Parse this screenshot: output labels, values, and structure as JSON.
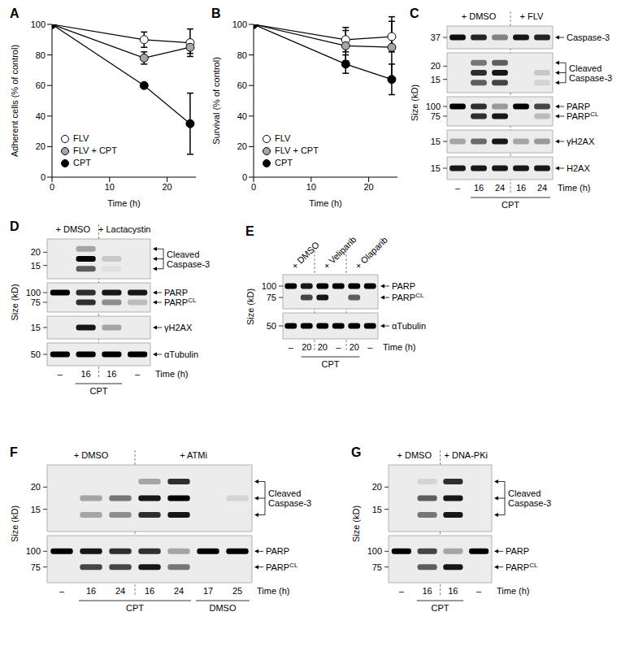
{
  "chart_data": [
    {
      "type": "line",
      "panel": "A",
      "xlabel": "Time (h)",
      "ylabel": "Adherent cells (% of control)",
      "x": [
        0,
        16,
        24
      ],
      "xlim": [
        0,
        25
      ],
      "xticks": [
        0,
        10,
        20
      ],
      "ylim": [
        0,
        100
      ],
      "yticks": [
        0,
        20,
        40,
        60,
        80,
        100
      ],
      "legend": "lower left",
      "series": [
        {
          "name": "FLV",
          "color": "#ffffff",
          "marker": "circle",
          "values": [
            100,
            90,
            88
          ],
          "errors": [
            0,
            5,
            9
          ]
        },
        {
          "name": "FLV + CPT",
          "color": "#a6a6a6",
          "marker": "circle",
          "values": [
            100,
            78,
            85
          ],
          "errors": [
            0,
            4,
            4
          ]
        },
        {
          "name": "CPT",
          "color": "#000000",
          "marker": "circle",
          "values": [
            100,
            60,
            35
          ],
          "errors": [
            0,
            1,
            20
          ]
        }
      ]
    },
    {
      "type": "line",
      "panel": "B",
      "xlabel": "Time (h)",
      "ylabel": "Survival (% of control)",
      "x": [
        0,
        16,
        24
      ],
      "xlim": [
        0,
        25
      ],
      "xticks": [
        0,
        10,
        20
      ],
      "ylim": [
        0,
        100
      ],
      "yticks": [
        0,
        20,
        40,
        60,
        80,
        100
      ],
      "legend": "lower left",
      "series": [
        {
          "name": "FLV",
          "color": "#ffffff",
          "marker": "circle",
          "values": [
            100,
            90,
            92
          ],
          "errors": [
            0,
            8,
            10
          ]
        },
        {
          "name": "FLV + CPT",
          "color": "#a6a6a6",
          "marker": "circle",
          "values": [
            100,
            86,
            85
          ],
          "errors": [
            0,
            10,
            20
          ]
        },
        {
          "name": "CPT",
          "color": "#000000",
          "marker": "circle",
          "values": [
            100,
            74,
            64
          ],
          "errors": [
            0,
            6,
            10
          ]
        }
      ]
    }
  ],
  "blots": [
    {
      "panel": "C",
      "size_label": "Size (kD)",
      "time_label": "Time (h)",
      "headers": [
        {
          "text": "+ DMSO",
          "lanes": [
            0,
            2
          ]
        },
        {
          "text": "+ FLV",
          "lanes": [
            3,
            4
          ]
        }
      ],
      "times": [
        "–",
        "16",
        "24",
        "16",
        "24"
      ],
      "spans": [
        {
          "text": "CPT",
          "lanes": [
            1,
            4
          ]
        }
      ],
      "strips": [
        {
          "markers": [
            37
          ],
          "rows": [
            {
              "label": "Caspase-3",
              "bands": [
                0.95,
                0.85,
                0.45,
                0.9,
                0.85
              ]
            }
          ]
        },
        {
          "markers": [
            20,
            15
          ],
          "group_label": [
            "Cleaved",
            "Caspase-3"
          ],
          "rows": [
            {
              "bands": [
                0,
                0.5,
                0.6,
                0,
                0
              ]
            },
            {
              "bands": [
                0,
                0.8,
                0.9,
                0,
                0.15
              ]
            },
            {
              "bands": [
                0,
                0.6,
                0.7,
                0,
                0.1
              ]
            }
          ]
        },
        {
          "markers": [
            100,
            75
          ],
          "rows": [
            {
              "label": "PARP",
              "bands": [
                1,
                0.8,
                0.35,
                1,
                0.7
              ]
            },
            {
              "label": "PARP",
              "label_sup": "CL",
              "bands": [
                0,
                0.8,
                0.9,
                0,
                0.2
              ]
            }
          ]
        },
        {
          "markers": [
            15
          ],
          "rows": [
            {
              "label": "γH2AX",
              "bands": [
                0.3,
                0.55,
                0.9,
                0.3,
                0.35
              ]
            }
          ]
        },
        {
          "markers": [
            15
          ],
          "rows": [
            {
              "label": "H2AX",
              "bands": [
                0.9,
                0.9,
                0.9,
                0.9,
                0.9
              ]
            }
          ]
        }
      ]
    },
    {
      "panel": "D",
      "size_label": "Size (kD)",
      "time_label": "Time (h)",
      "headers": [
        {
          "text": "+ DMSO",
          "lanes": [
            0,
            1
          ]
        },
        {
          "text": "+ Lactacystin",
          "lanes": [
            2,
            3
          ]
        }
      ],
      "times": [
        "–",
        "16",
        "16",
        "–"
      ],
      "spans": [
        {
          "text": "CPT",
          "lanes": [
            1,
            2
          ]
        }
      ],
      "strips": [
        {
          "markers": [
            20,
            15
          ],
          "group_label": [
            "Cleaved",
            "Caspase-3"
          ],
          "rows": [
            {
              "bands": [
                0,
                0.3,
                0,
                0
              ]
            },
            {
              "bands": [
                0,
                1,
                0.15,
                0
              ]
            },
            {
              "bands": [
                0,
                0.6,
                0.05,
                0
              ]
            }
          ]
        },
        {
          "markers": [
            100,
            75
          ],
          "rows": [
            {
              "label": "PARP",
              "bands": [
                1,
                0.8,
                0.9,
                0.9
              ]
            },
            {
              "label": "PARP",
              "label_sup": "CL",
              "bands": [
                0,
                0.8,
                0.4,
                0.2
              ]
            }
          ]
        },
        {
          "markers": [
            15
          ],
          "rows": [
            {
              "label": "γH2AX",
              "bands": [
                0,
                0.9,
                0.3,
                0
              ]
            }
          ]
        },
        {
          "markers": [
            50
          ],
          "rows": [
            {
              "label": "αTubulin",
              "bands": [
                1,
                1,
                1,
                1
              ]
            }
          ]
        }
      ]
    },
    {
      "panel": "E",
      "size_label": "Size (kD)",
      "time_label": "Time (h)",
      "headers": [
        {
          "text": "+ DMSO",
          "lanes": [
            0,
            1
          ]
        },
        {
          "text": "+ Veliparib",
          "lanes": [
            2,
            3
          ]
        },
        {
          "text": "+ Olaparib",
          "lanes": [
            4,
            5
          ]
        }
      ],
      "times": [
        "–",
        "20",
        "20",
        "–",
        "20",
        "–"
      ],
      "spans": [
        {
          "text": "CPT",
          "lanes": [
            1,
            4
          ]
        }
      ],
      "strips": [
        {
          "markers": [
            100,
            75
          ],
          "rows": [
            {
              "label": "PARP",
              "bands": [
                1,
                0.9,
                1,
                1,
                1,
                1
              ]
            },
            {
              "label": "PARP",
              "label_sup": "CL",
              "bands": [
                0,
                0.7,
                0.9,
                0,
                0.6,
                0
              ]
            }
          ]
        },
        {
          "markers": [
            50
          ],
          "rows": [
            {
              "label": "αTubulin",
              "bands": [
                1,
                1,
                1,
                1,
                1,
                1
              ]
            }
          ]
        }
      ]
    },
    {
      "panel": "F",
      "size_label": "Size (kD)",
      "time_label": "Time (h)",
      "headers": [
        {
          "text": "+ DMSO",
          "lanes": [
            0,
            2
          ]
        },
        {
          "text": "+ ATMi",
          "lanes": [
            3,
            6
          ]
        }
      ],
      "times": [
        "–",
        "16",
        "24",
        "16",
        "24",
        "17",
        "25"
      ],
      "spans": [
        {
          "text": "CPT",
          "lanes": [
            1,
            4
          ]
        },
        {
          "text": "DMSO",
          "lanes": [
            5,
            6
          ]
        }
      ],
      "strips": [
        {
          "markers": [
            20,
            15
          ],
          "group_label": [
            "Cleaved",
            "Caspase-3"
          ],
          "rows": [
            {
              "bands": [
                0,
                0,
                0,
                0.3,
                0.8,
                0,
                0
              ]
            },
            {
              "bands": [
                0,
                0.3,
                0.5,
                0.9,
                1,
                0,
                0.1
              ]
            },
            {
              "bands": [
                0,
                0.3,
                0.4,
                0.8,
                0.9,
                0,
                0
              ]
            }
          ]
        },
        {
          "markers": [
            100,
            75
          ],
          "rows": [
            {
              "label": "PARP",
              "bands": [
                1,
                0.9,
                0.8,
                0.8,
                0.3,
                1,
                1
              ]
            },
            {
              "label": "PARP",
              "label_sup": "CL",
              "bands": [
                0,
                0.7,
                0.7,
                0.9,
                0.5,
                0,
                0
              ]
            }
          ]
        }
      ]
    },
    {
      "panel": "G",
      "size_label": "Size (kD)",
      "time_label": "Time (h)",
      "headers": [
        {
          "text": "+ DMSO",
          "lanes": [
            0,
            1
          ]
        },
        {
          "text": "+ DNA-PKi",
          "lanes": [
            2,
            3
          ]
        }
      ],
      "times": [
        "–",
        "16",
        "16",
        "–"
      ],
      "spans": [
        {
          "text": "CPT",
          "lanes": [
            1,
            2
          ]
        }
      ],
      "strips": [
        {
          "markers": [
            20,
            15
          ],
          "group_label": [
            "Cleaved",
            "Caspase-3"
          ],
          "rows": [
            {
              "bands": [
                0,
                0.1,
                0.8,
                0
              ]
            },
            {
              "bands": [
                0,
                0.6,
                0.9,
                0
              ]
            },
            {
              "bands": [
                0,
                0.5,
                0.9,
                0
              ]
            }
          ]
        },
        {
          "markers": [
            100,
            75
          ],
          "rows": [
            {
              "label": "PARP",
              "bands": [
                1,
                0.7,
                0.3,
                1
              ]
            },
            {
              "label": "PARP",
              "label_sup": "CL",
              "bands": [
                0,
                0.6,
                0.9,
                0
              ]
            }
          ]
        }
      ]
    }
  ]
}
